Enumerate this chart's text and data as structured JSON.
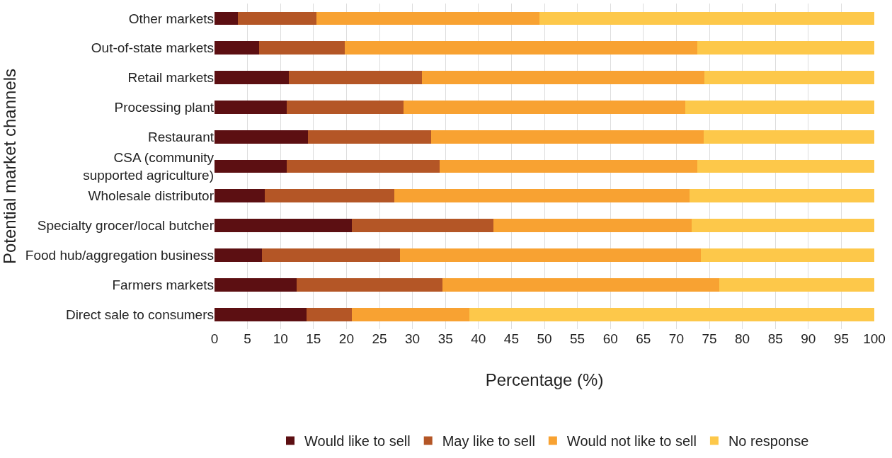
{
  "chart_data": {
    "type": "bar",
    "orientation": "horizontal",
    "stacked": true,
    "ylabel": "Potential market channels",
    "xlabel": "Percentage (%)",
    "categories": [
      "Other markets",
      "Out-of-state markets",
      "Retail markets",
      "Processing plant",
      "Restaurant",
      "CSA (community\nsupported agriculture)",
      "Wholesale distributor",
      "Specialty grocer/local butcher",
      "Food hub/aggregation business",
      "Farmers markets",
      "Direct sale to consumers"
    ],
    "series": [
      {
        "name": "Would like to sell",
        "color": "#5c0f12",
        "values": [
          3.5,
          6.8,
          11.3,
          10.9,
          14.2,
          10.9,
          7.6,
          20.8,
          7.2,
          12.4,
          13.9
        ]
      },
      {
        "name": "May like to sell",
        "color": "#b45626",
        "values": [
          11.9,
          12.9,
          20.1,
          17.8,
          18.6,
          23.2,
          19.7,
          21.5,
          20.9,
          22.2,
          6.9
        ]
      },
      {
        "name": "Would not like to sell",
        "color": "#f8a232",
        "values": [
          33.8,
          53.5,
          42.9,
          42.7,
          41.3,
          39.1,
          44.7,
          30.0,
          45.6,
          41.9,
          17.8
        ]
      },
      {
        "name": "No response",
        "color": "#fdc84a",
        "values": [
          50.8,
          26.8,
          25.7,
          28.6,
          25.9,
          26.8,
          28.0,
          27.7,
          26.3,
          23.5,
          61.4
        ]
      }
    ],
    "xlim": [
      0,
      100
    ],
    "xticks": [
      0,
      5,
      10,
      15,
      20,
      25,
      30,
      35,
      40,
      45,
      50,
      55,
      60,
      65,
      70,
      75,
      80,
      85,
      90,
      95,
      100
    ],
    "grid": "x",
    "legend": "bottom"
  }
}
